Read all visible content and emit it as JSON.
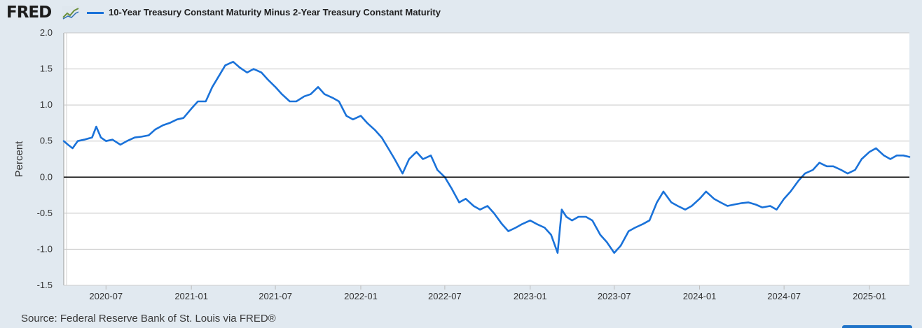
{
  "header": {
    "logo_text": "FRED",
    "logo_icon": "trend-line-icon",
    "series_title": "10-Year Treasury Constant Maturity Minus 2-Year Treasury Constant Maturity"
  },
  "footer": {
    "source": "Source: Federal Reserve Bank of St. Louis via FRED®"
  },
  "colors": {
    "line": "#1a72d9",
    "background": "#e1e9f0",
    "plot_background": "#ffffff",
    "grid": "#c8c8c8",
    "zero_line": "#000000"
  },
  "chart_data": {
    "type": "line",
    "title": "",
    "xlabel": "",
    "ylabel": "Percent",
    "ylim": [
      -1.5,
      2.0
    ],
    "xlim": [
      "2020-04-01",
      "2025-03-28"
    ],
    "grid": true,
    "legend": "top-left",
    "y_ticks": [
      {
        "value": 2.0,
        "label": "2.0"
      },
      {
        "value": 1.5,
        "label": "1.5"
      },
      {
        "value": 1.0,
        "label": "1.0"
      },
      {
        "value": 0.5,
        "label": "0.5"
      },
      {
        "value": 0.0,
        "label": "0.0"
      },
      {
        "value": -0.5,
        "label": "-0.5"
      },
      {
        "value": -1.0,
        "label": "-1.0"
      },
      {
        "value": -1.5,
        "label": "-1.5"
      }
    ],
    "x_ticks": [
      {
        "value": "2020-07-01",
        "label": "2020-07"
      },
      {
        "value": "2021-01-01",
        "label": "2021-01"
      },
      {
        "value": "2021-07-01",
        "label": "2021-07"
      },
      {
        "value": "2022-01-01",
        "label": "2022-01"
      },
      {
        "value": "2022-07-01",
        "label": "2022-07"
      },
      {
        "value": "2023-01-01",
        "label": "2023-01"
      },
      {
        "value": "2023-07-01",
        "label": "2023-07"
      },
      {
        "value": "2024-01-01",
        "label": "2024-01"
      },
      {
        "value": "2024-07-01",
        "label": "2024-07"
      },
      {
        "value": "2025-01-01",
        "label": "2025-01"
      }
    ],
    "reference_lines": [
      0.0
    ],
    "series": [
      {
        "name": "10-Year Treasury Constant Maturity Minus 2-Year Treasury Constant Maturity",
        "x": [
          "2020-04-01",
          "2020-04-10",
          "2020-04-20",
          "2020-05-01",
          "2020-05-15",
          "2020-06-01",
          "2020-06-10",
          "2020-06-20",
          "2020-07-01",
          "2020-07-15",
          "2020-08-01",
          "2020-08-15",
          "2020-09-01",
          "2020-09-15",
          "2020-10-01",
          "2020-10-15",
          "2020-11-01",
          "2020-11-15",
          "2020-12-01",
          "2020-12-15",
          "2021-01-01",
          "2021-01-15",
          "2021-02-01",
          "2021-02-15",
          "2021-03-01",
          "2021-03-15",
          "2021-04-01",
          "2021-04-15",
          "2021-05-01",
          "2021-05-15",
          "2021-06-01",
          "2021-06-15",
          "2021-07-01",
          "2021-07-15",
          "2021-08-01",
          "2021-08-15",
          "2021-09-01",
          "2021-09-15",
          "2021-10-01",
          "2021-10-15",
          "2021-11-01",
          "2021-11-15",
          "2021-12-01",
          "2021-12-15",
          "2022-01-01",
          "2022-01-15",
          "2022-02-01",
          "2022-02-15",
          "2022-03-01",
          "2022-03-15",
          "2022-04-01",
          "2022-04-15",
          "2022-05-01",
          "2022-05-15",
          "2022-06-01",
          "2022-06-15",
          "2022-07-01",
          "2022-07-15",
          "2022-08-01",
          "2022-08-15",
          "2022-09-01",
          "2022-09-15",
          "2022-10-01",
          "2022-10-15",
          "2022-11-01",
          "2022-11-15",
          "2022-12-01",
          "2022-12-15",
          "2023-01-01",
          "2023-01-15",
          "2023-02-01",
          "2023-02-15",
          "2023-03-01",
          "2023-03-10",
          "2023-03-20",
          "2023-04-01",
          "2023-04-15",
          "2023-05-01",
          "2023-05-15",
          "2023-06-01",
          "2023-06-15",
          "2023-07-01",
          "2023-07-15",
          "2023-08-01",
          "2023-08-15",
          "2023-09-01",
          "2023-09-15",
          "2023-10-01",
          "2023-10-15",
          "2023-11-01",
          "2023-11-15",
          "2023-12-01",
          "2023-12-15",
          "2024-01-01",
          "2024-01-15",
          "2024-02-01",
          "2024-02-15",
          "2024-03-01",
          "2024-03-15",
          "2024-04-01",
          "2024-04-15",
          "2024-05-01",
          "2024-05-15",
          "2024-06-01",
          "2024-06-15",
          "2024-07-01",
          "2024-07-15",
          "2024-08-01",
          "2024-08-15",
          "2024-09-01",
          "2024-09-15",
          "2024-10-01",
          "2024-10-15",
          "2024-11-01",
          "2024-11-15",
          "2024-12-01",
          "2024-12-15",
          "2025-01-01",
          "2025-01-15",
          "2025-02-01",
          "2025-02-15",
          "2025-03-01",
          "2025-03-15",
          "2025-03-28"
        ],
        "values": [
          0.5,
          0.45,
          0.4,
          0.5,
          0.52,
          0.55,
          0.7,
          0.55,
          0.5,
          0.52,
          0.45,
          0.5,
          0.55,
          0.56,
          0.58,
          0.66,
          0.72,
          0.75,
          0.8,
          0.82,
          0.95,
          1.05,
          1.05,
          1.25,
          1.4,
          1.55,
          1.6,
          1.52,
          1.45,
          1.5,
          1.45,
          1.35,
          1.25,
          1.15,
          1.05,
          1.05,
          1.12,
          1.15,
          1.25,
          1.15,
          1.1,
          1.05,
          0.85,
          0.8,
          0.85,
          0.75,
          0.65,
          0.55,
          0.4,
          0.25,
          0.05,
          0.25,
          0.35,
          0.25,
          0.3,
          0.1,
          0.0,
          -0.15,
          -0.35,
          -0.3,
          -0.4,
          -0.45,
          -0.4,
          -0.5,
          -0.65,
          -0.75,
          -0.7,
          -0.65,
          -0.6,
          -0.65,
          -0.7,
          -0.8,
          -1.05,
          -0.45,
          -0.55,
          -0.6,
          -0.55,
          -0.55,
          -0.6,
          -0.8,
          -0.9,
          -1.05,
          -0.95,
          -0.75,
          -0.7,
          -0.65,
          -0.6,
          -0.35,
          -0.2,
          -0.35,
          -0.4,
          -0.45,
          -0.4,
          -0.3,
          -0.2,
          -0.3,
          -0.35,
          -0.4,
          -0.38,
          -0.36,
          -0.35,
          -0.38,
          -0.42,
          -0.4,
          -0.45,
          -0.3,
          -0.2,
          -0.05,
          0.05,
          0.1,
          0.2,
          0.15,
          0.15,
          0.1,
          0.05,
          0.1,
          0.25,
          0.35,
          0.4,
          0.3,
          0.25,
          0.3,
          0.3,
          0.28
        ]
      }
    ]
  }
}
